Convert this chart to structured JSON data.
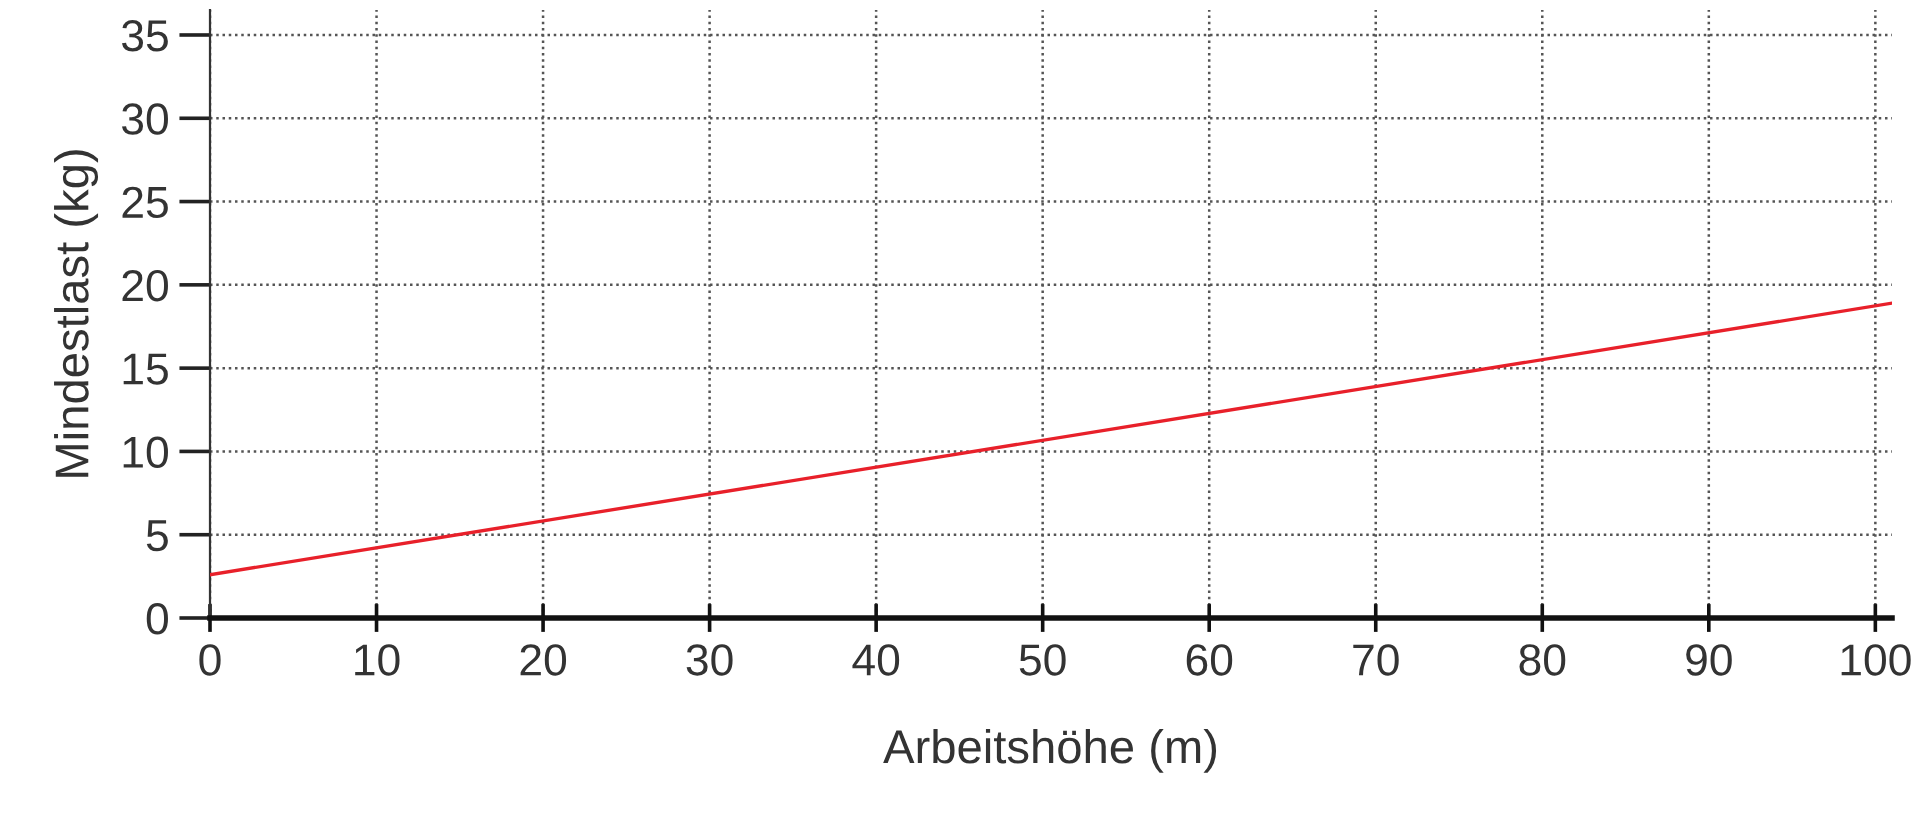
{
  "chart_data": {
    "type": "line",
    "xlabel": "Arbeitshöhe (m)",
    "ylabel": "Mindestlast (kg)",
    "series": [
      {
        "color": "#e8202a",
        "x": [
          0,
          101
        ],
        "values": [
          2.6,
          18.9
        ]
      }
    ],
    "xlim": [
      0,
      101
    ],
    "xticks": [
      0,
      10,
      20,
      30,
      40,
      50,
      60,
      70,
      80,
      90,
      100
    ],
    "ylim": [
      0,
      36.5
    ],
    "yticks": [
      0,
      5,
      10,
      15,
      20,
      25,
      30,
      35
    ],
    "grid": true,
    "legend": false,
    "marker": "none",
    "line_style": "solid"
  }
}
